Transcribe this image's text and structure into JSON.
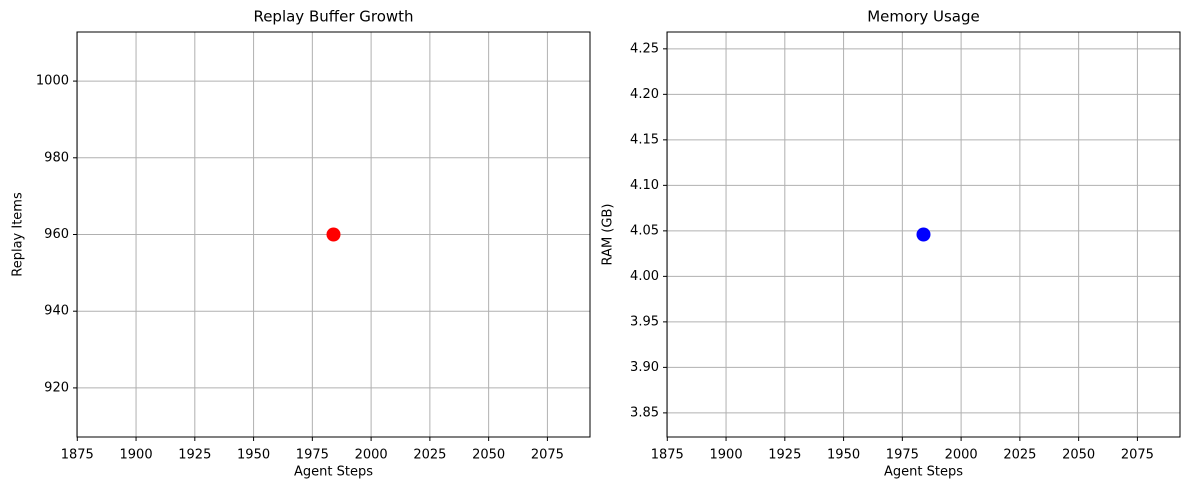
{
  "chart_data": [
    {
      "type": "scatter",
      "title": "Replay Buffer Growth",
      "x_label": "Agent Steps",
      "y_label": "Replay Items",
      "series": [
        {
          "color": "#ff0000",
          "x": [
            1984
          ],
          "values": [
            960
          ]
        }
      ],
      "xlim": [
        1874.88,
        2093.12
      ],
      "xticks": [
        1875,
        1900,
        1925,
        1950,
        1975,
        2000,
        2025,
        2050,
        2075
      ],
      "ylim": [
        907.2,
        1012.8
      ],
      "yticks": [
        920,
        940,
        960,
        980,
        1000
      ],
      "grid": true
    },
    {
      "type": "scatter",
      "title": "Memory Usage",
      "x_label": "Agent Steps",
      "y_label": "RAM (GB)",
      "series": [
        {
          "color": "#0000ff",
          "x": [
            1984
          ],
          "values": [
            4.046
          ]
        }
      ],
      "xlim": [
        1874.88,
        2093.12
      ],
      "xticks": [
        1875,
        1900,
        1925,
        1950,
        1975,
        2000,
        2025,
        2050,
        2075
      ],
      "ylim": [
        3.8235,
        4.2685
      ],
      "yticks": [
        3.85,
        {
          "value": 3.9,
          "label": "3.90"
        },
        3.95,
        {
          "value": 4,
          "label": "4.00"
        },
        4.05,
        {
          "value": 4.1,
          "label": "4.10"
        },
        4.15,
        {
          "value": 4.2,
          "label": "4.20"
        },
        4.25
      ],
      "grid": true
    }
  ]
}
